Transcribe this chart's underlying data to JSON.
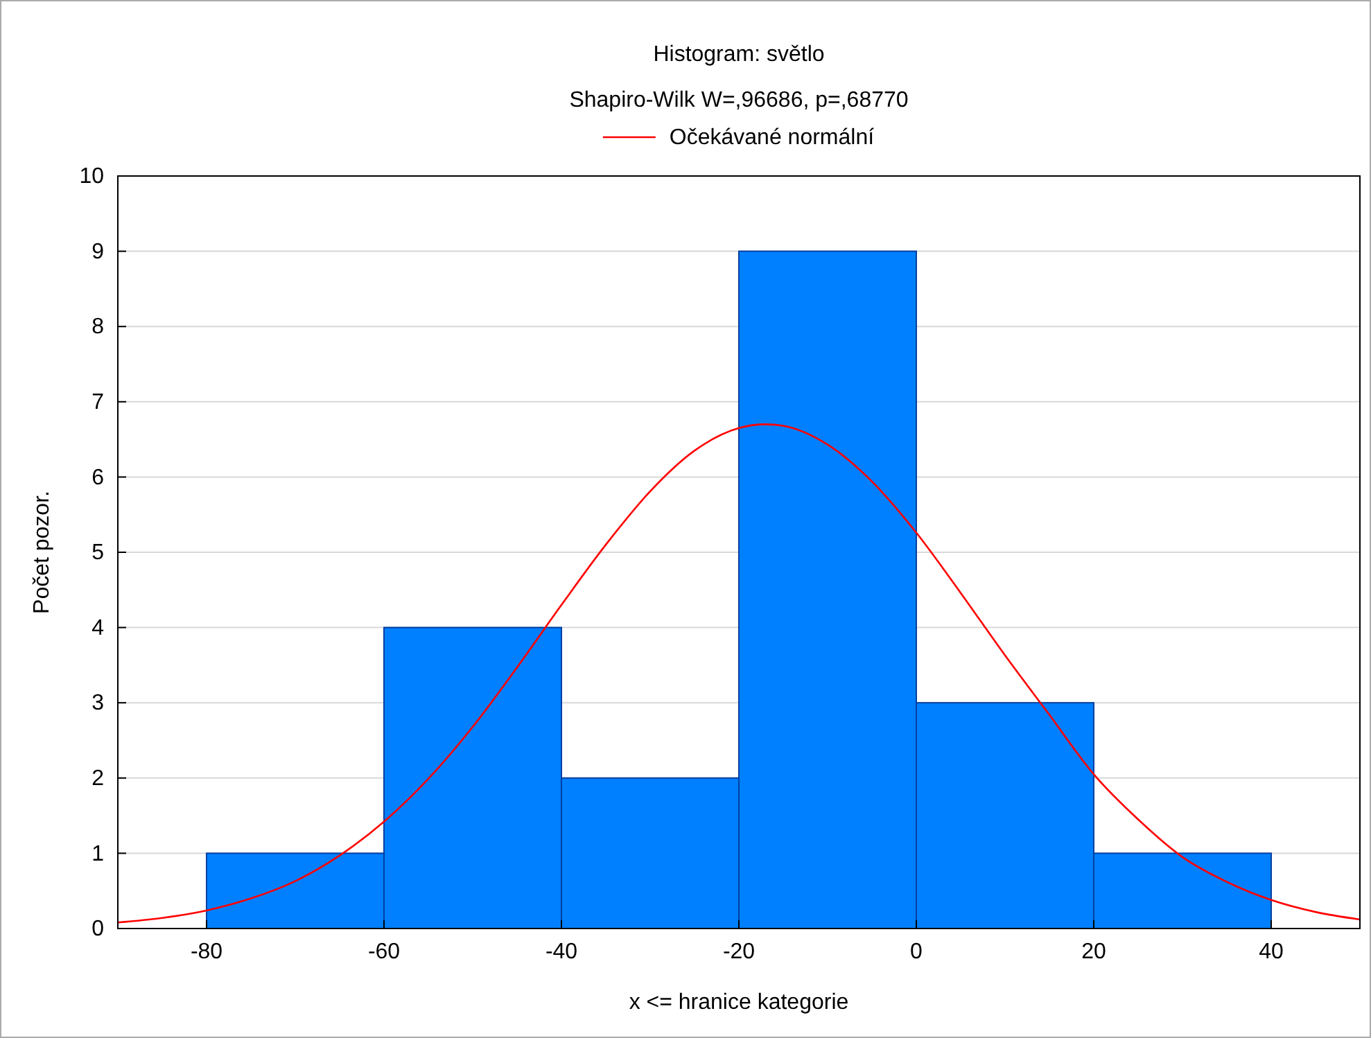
{
  "chart_data": {
    "type": "histogram",
    "title": "Histogram: světlo",
    "subtitle": "Shapiro-Wilk W=,96686, p=,68770",
    "xlabel": "x <= hranice kategorie",
    "ylabel": "Počet pozor.",
    "bins": [
      -80,
      -60,
      -40,
      -20,
      0,
      20,
      40
    ],
    "values": [
      1,
      4,
      2,
      9,
      3,
      1
    ],
    "color": "#0080ff",
    "series": [
      {
        "type": "line",
        "name": "Očekávané normální",
        "color": "#ff0000",
        "x": [
          -90,
          -85,
          -80,
          -75,
          -70,
          -65,
          -60,
          -55,
          -50,
          -45,
          -40,
          -35,
          -30,
          -25,
          -20,
          -17,
          -15,
          -10,
          -5,
          0,
          5,
          10,
          15,
          20,
          25,
          30,
          35,
          40,
          45,
          50
        ],
        "values": [
          0.08,
          0.14,
          0.24,
          0.4,
          0.63,
          0.97,
          1.42,
          1.99,
          2.68,
          3.47,
          4.3,
          5.1,
          5.81,
          6.35,
          6.65,
          6.7,
          6.68,
          6.43,
          5.94,
          5.26,
          4.46,
          3.63,
          2.84,
          2.05,
          1.45,
          0.95,
          0.62,
          0.38,
          0.22,
          0.12
        ]
      }
    ],
    "xlim": [
      -90,
      50
    ],
    "xticks": [
      -80,
      -60,
      -40,
      -20,
      0,
      20,
      40
    ],
    "ylim": [
      0,
      10
    ],
    "yticks": [
      0,
      1,
      2,
      3,
      4,
      5,
      6,
      7,
      8,
      9,
      10
    ],
    "grid": "y",
    "legend": "top"
  }
}
